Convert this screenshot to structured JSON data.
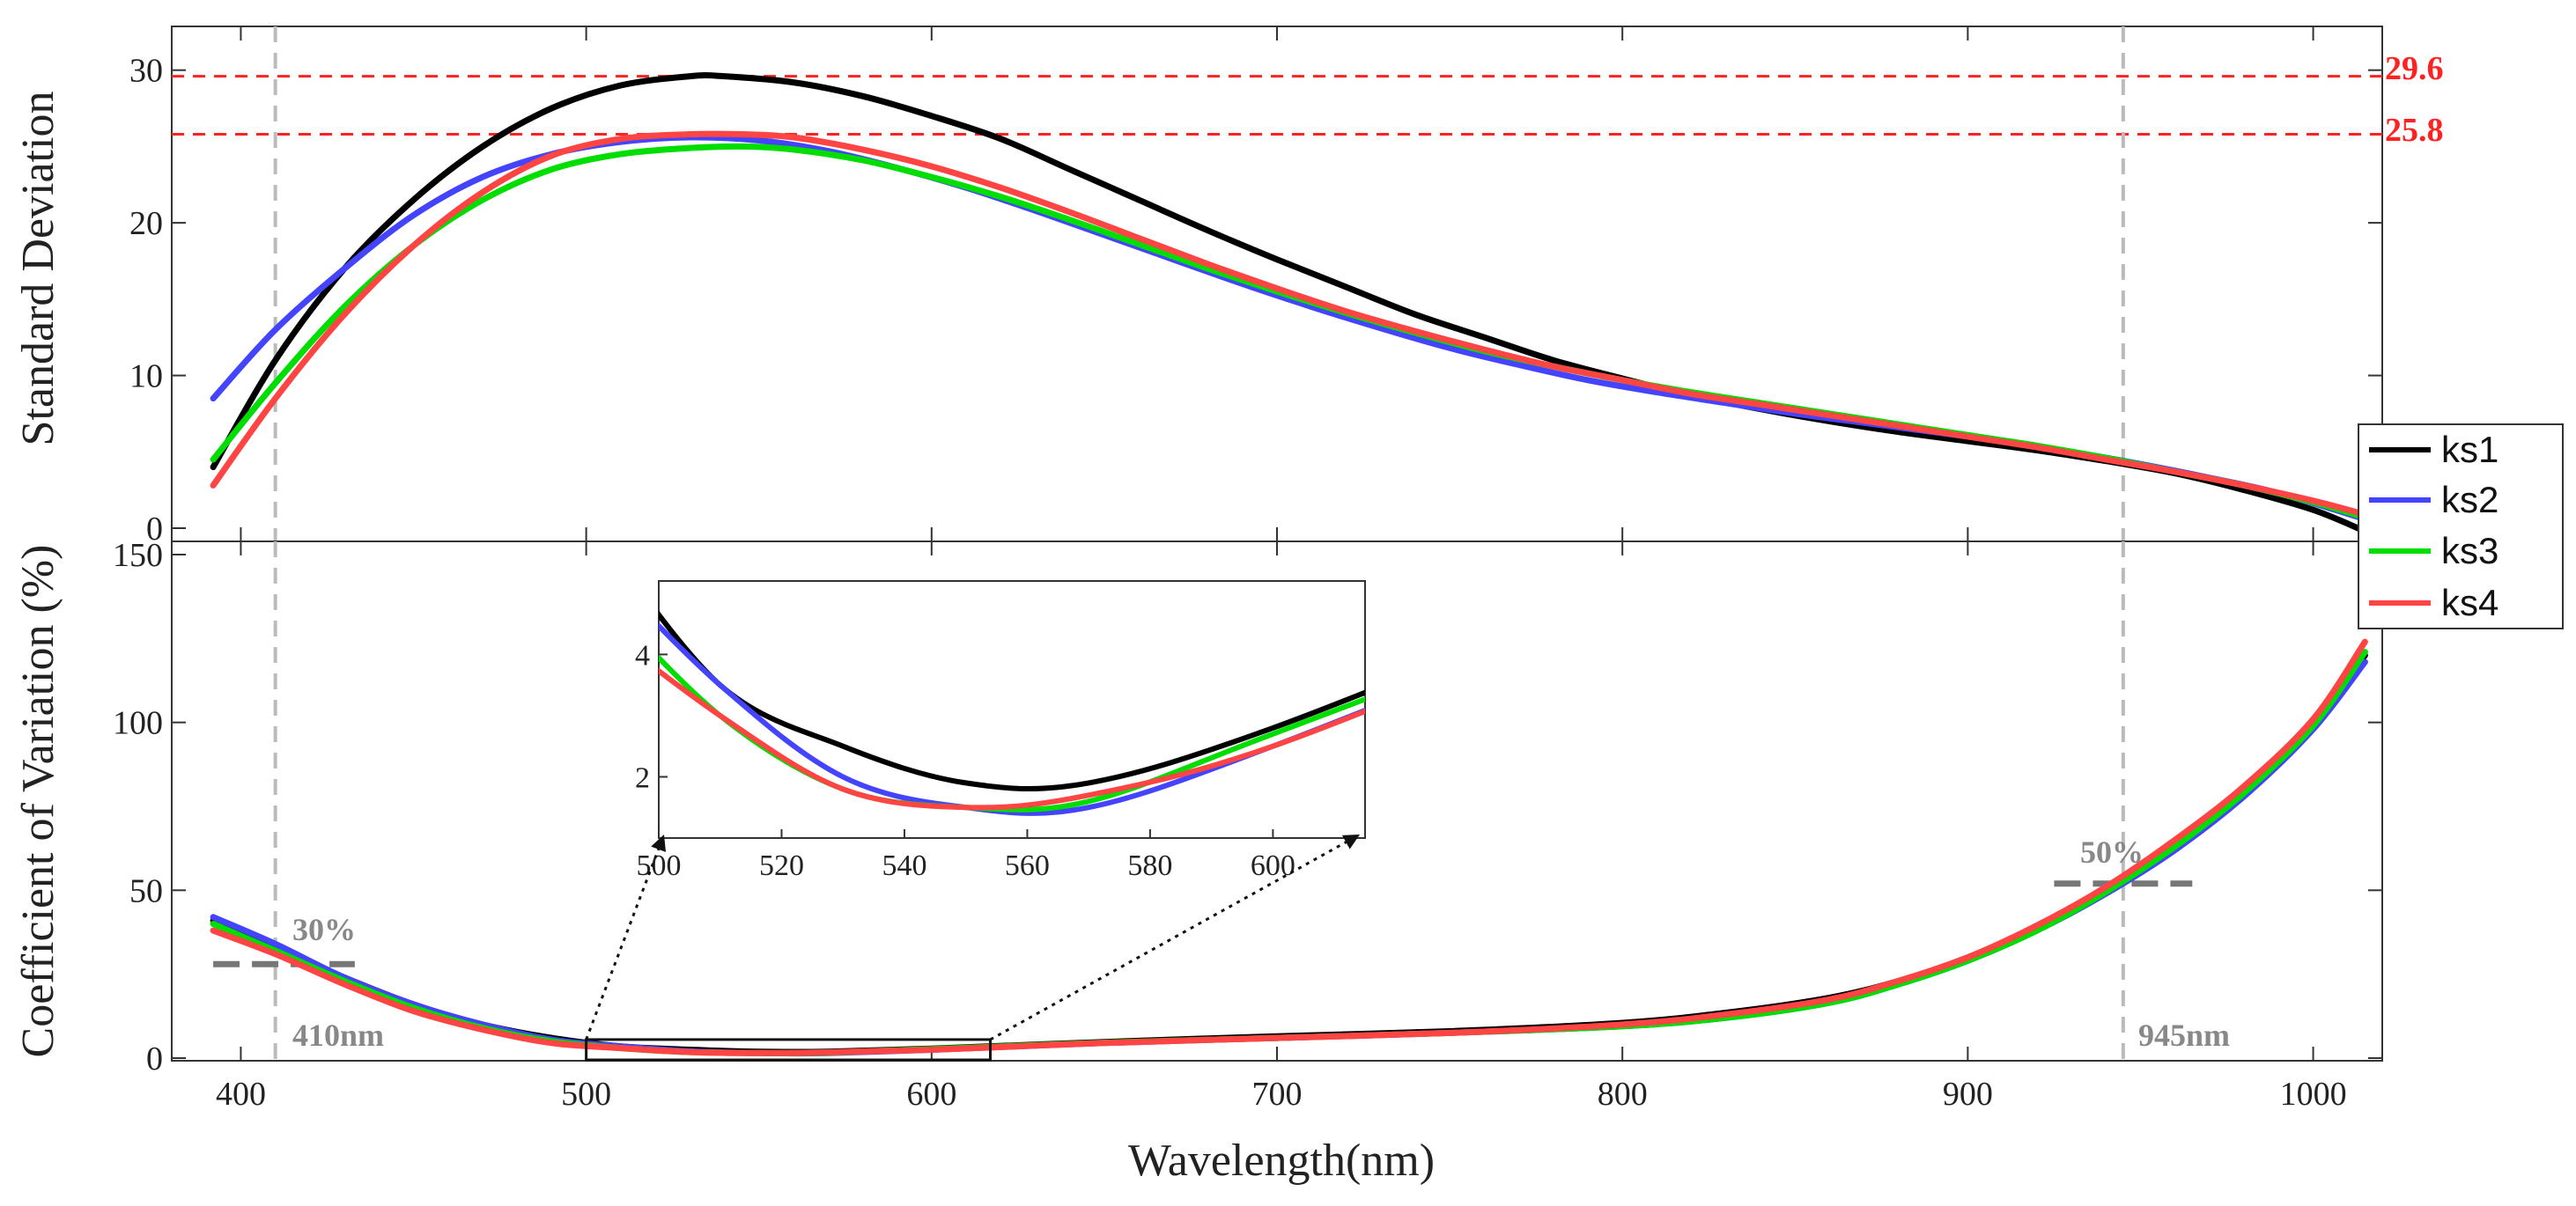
{
  "chart_data": [
    {
      "type": "line",
      "panel": "top",
      "title": "",
      "xlabel": "",
      "ylabel": "Standard Deviation",
      "xlim": [
        380,
        1020
      ],
      "ylim": [
        0,
        32
      ],
      "yticks": [
        0,
        10,
        20,
        30
      ],
      "series": [
        {
          "name": "ks1",
          "color": "#000000",
          "x": [
            392,
            410,
            430,
            450,
            470,
            490,
            510,
            530,
            540,
            560,
            580,
            600,
            620,
            640,
            660,
            680,
            700,
            720,
            740,
            760,
            780,
            800,
            820,
            840,
            860,
            880,
            900,
            920,
            940,
            960,
            980,
            1000,
            1015
          ],
          "y": [
            4.0,
            11.0,
            17.0,
            21.5,
            25.0,
            27.5,
            29.0,
            29.6,
            29.6,
            29.2,
            28.3,
            27.0,
            25.5,
            23.5,
            21.5,
            19.5,
            17.6,
            15.8,
            14.0,
            12.5,
            11.0,
            9.8,
            8.7,
            7.8,
            7.0,
            6.3,
            5.7,
            5.1,
            4.4,
            3.6,
            2.5,
            1.2,
            -0.2
          ]
        },
        {
          "name": "ks2",
          "color": "#4444ff",
          "x": [
            392,
            410,
            430,
            450,
            470,
            490,
            510,
            530,
            550,
            570,
            590,
            610,
            630,
            650,
            670,
            690,
            710,
            730,
            750,
            770,
            790,
            810,
            830,
            850,
            870,
            890,
            910,
            930,
            950,
            970,
            990,
            1015
          ],
          "y": [
            8.5,
            13.0,
            17.0,
            20.5,
            23.0,
            24.5,
            25.3,
            25.6,
            25.4,
            24.7,
            23.6,
            22.3,
            20.8,
            19.2,
            17.6,
            16.0,
            14.5,
            13.1,
            11.8,
            10.7,
            9.7,
            8.9,
            8.2,
            7.5,
            6.9,
            6.3,
            5.7,
            5.0,
            4.2,
            3.3,
            2.3,
            0.6
          ]
        },
        {
          "name": "ks3",
          "color": "#00dd00",
          "x": [
            392,
            410,
            430,
            450,
            470,
            490,
            510,
            530,
            545,
            560,
            580,
            600,
            620,
            640,
            660,
            680,
            700,
            720,
            740,
            760,
            780,
            800,
            820,
            840,
            860,
            880,
            900,
            920,
            940,
            960,
            980,
            1000,
            1015
          ],
          "y": [
            4.5,
            9.5,
            14.5,
            18.5,
            21.5,
            23.5,
            24.5,
            24.9,
            25.0,
            24.8,
            24.1,
            23.0,
            21.7,
            20.2,
            18.6,
            17.0,
            15.5,
            14.1,
            12.8,
            11.6,
            10.6,
            9.7,
            8.9,
            8.2,
            7.5,
            6.8,
            6.1,
            5.4,
            4.6,
            3.7,
            2.8,
            1.7,
            0.7
          ]
        },
        {
          "name": "ks4",
          "color": "#ff4444",
          "x": [
            392,
            410,
            430,
            450,
            470,
            490,
            510,
            530,
            545,
            560,
            580,
            600,
            620,
            640,
            660,
            680,
            700,
            720,
            740,
            760,
            780,
            800,
            820,
            840,
            860,
            880,
            900,
            920,
            940,
            960,
            980,
            1000,
            1015
          ],
          "y": [
            2.8,
            8.5,
            14.0,
            18.5,
            22.0,
            24.4,
            25.5,
            25.8,
            25.8,
            25.6,
            24.8,
            23.7,
            22.3,
            20.7,
            19.0,
            17.3,
            15.7,
            14.2,
            12.9,
            11.7,
            10.6,
            9.7,
            8.8,
            8.1,
            7.4,
            6.7,
            6.0,
            5.3,
            4.5,
            3.7,
            2.8,
            1.8,
            0.9
          ]
        }
      ]
    },
    {
      "type": "line",
      "panel": "bottom",
      "title": "",
      "xlabel": "Wavelength(nm)",
      "ylabel": "Coefficient of Variation (%)",
      "xlim": [
        380,
        1020
      ],
      "ylim": [
        0,
        150
      ],
      "xticks": [
        400,
        500,
        600,
        700,
        800,
        900,
        1000
      ],
      "yticks": [
        0,
        50,
        100,
        150
      ],
      "series": [
        {
          "name": "ks1",
          "color": "#000000",
          "x": [
            392,
            410,
            430,
            450,
            470,
            490,
            510,
            530,
            550,
            570,
            600,
            650,
            700,
            750,
            800,
            830,
            860,
            880,
            900,
            920,
            940,
            960,
            980,
            1000,
            1015
          ],
          "y": [
            41,
            33,
            24,
            16,
            10,
            6,
            3.5,
            2.5,
            1.9,
            1.9,
            2.8,
            4.8,
            6.5,
            8.0,
            10.5,
            13.5,
            18.0,
            23.0,
            30.0,
            39.0,
            50.0,
            64.0,
            80.0,
            100.0,
            120.0
          ]
        },
        {
          "name": "ks2",
          "color": "#4444ff",
          "x": [
            392,
            410,
            430,
            450,
            470,
            490,
            510,
            530,
            550,
            570,
            600,
            650,
            700,
            750,
            800,
            830,
            860,
            880,
            900,
            920,
            940,
            960,
            980,
            1000,
            1015
          ],
          "y": [
            42,
            34,
            24,
            16,
            10,
            5.5,
            3.5,
            2.0,
            1.5,
            1.5,
            2.5,
            4.5,
            6.0,
            7.5,
            9.5,
            12.0,
            16.5,
            22.0,
            29.0,
            38.0,
            49.0,
            62.0,
            78.0,
            98.0,
            118.0
          ]
        },
        {
          "name": "ks3",
          "color": "#00dd00",
          "x": [
            392,
            410,
            430,
            450,
            470,
            490,
            510,
            530,
            550,
            570,
            600,
            650,
            700,
            750,
            800,
            830,
            860,
            880,
            900,
            920,
            940,
            960,
            980,
            1000,
            1015
          ],
          "y": [
            40,
            32,
            23,
            15,
            9,
            5,
            3.0,
            1.8,
            1.5,
            1.6,
            2.7,
            4.6,
            6.0,
            7.5,
            9.5,
            12.0,
            16.5,
            22.0,
            29.0,
            38.0,
            49.5,
            63.0,
            79.0,
            99.0,
            121.0
          ]
        },
        {
          "name": "ks4",
          "color": "#ff4444",
          "x": [
            392,
            410,
            430,
            450,
            470,
            490,
            510,
            530,
            550,
            570,
            600,
            650,
            700,
            750,
            800,
            830,
            860,
            880,
            900,
            920,
            940,
            960,
            980,
            1000,
            1015
          ],
          "y": [
            38,
            31,
            22,
            14,
            8.5,
            4.5,
            3.0,
            1.8,
            1.5,
            1.7,
            2.5,
            4.5,
            6.0,
            7.5,
            10.0,
            13.0,
            17.5,
            23.0,
            30.0,
            39.5,
            51.0,
            65.0,
            81.0,
            101.0,
            124.0
          ]
        }
      ]
    }
  ],
  "inset": {
    "xlim": [
      500,
      615
    ],
    "ylim": [
      1.0,
      5.2
    ],
    "xticks": [
      500,
      520,
      540,
      560,
      580,
      600
    ],
    "yticks": [
      2,
      4
    ],
    "region": {
      "x0": 500,
      "x1": 617,
      "y0": 0,
      "y1": 5
    }
  },
  "legend": {
    "entries": [
      {
        "name": "ks1",
        "color": "#000000"
      },
      {
        "name": "ks2",
        "color": "#4444ff"
      },
      {
        "name": "ks3",
        "color": "#00dd00"
      },
      {
        "name": "ks4",
        "color": "#ff4444"
      }
    ],
    "position": "right"
  },
  "annotations": {
    "max1": {
      "label": "29.6",
      "value": 29.6
    },
    "max2": {
      "label": "25.8",
      "value": 25.8
    },
    "left_nm": {
      "label": "410nm",
      "value": 410
    },
    "right_nm": {
      "label": "945nm",
      "value": 945
    },
    "left_pct": {
      "label": "30%",
      "value": 28,
      "x_from": 392,
      "x_to": 433
    },
    "right_pct": {
      "label": "50%",
      "value": 52,
      "x_from": 925,
      "x_to": 965
    }
  },
  "colors": {
    "ks1": "#000000",
    "ks2": "#4444ff",
    "ks3": "#00dd00",
    "ks4": "#ff4444",
    "refline": "#ff2222",
    "guide": "#bbbbbb",
    "annotation": "#888888"
  }
}
